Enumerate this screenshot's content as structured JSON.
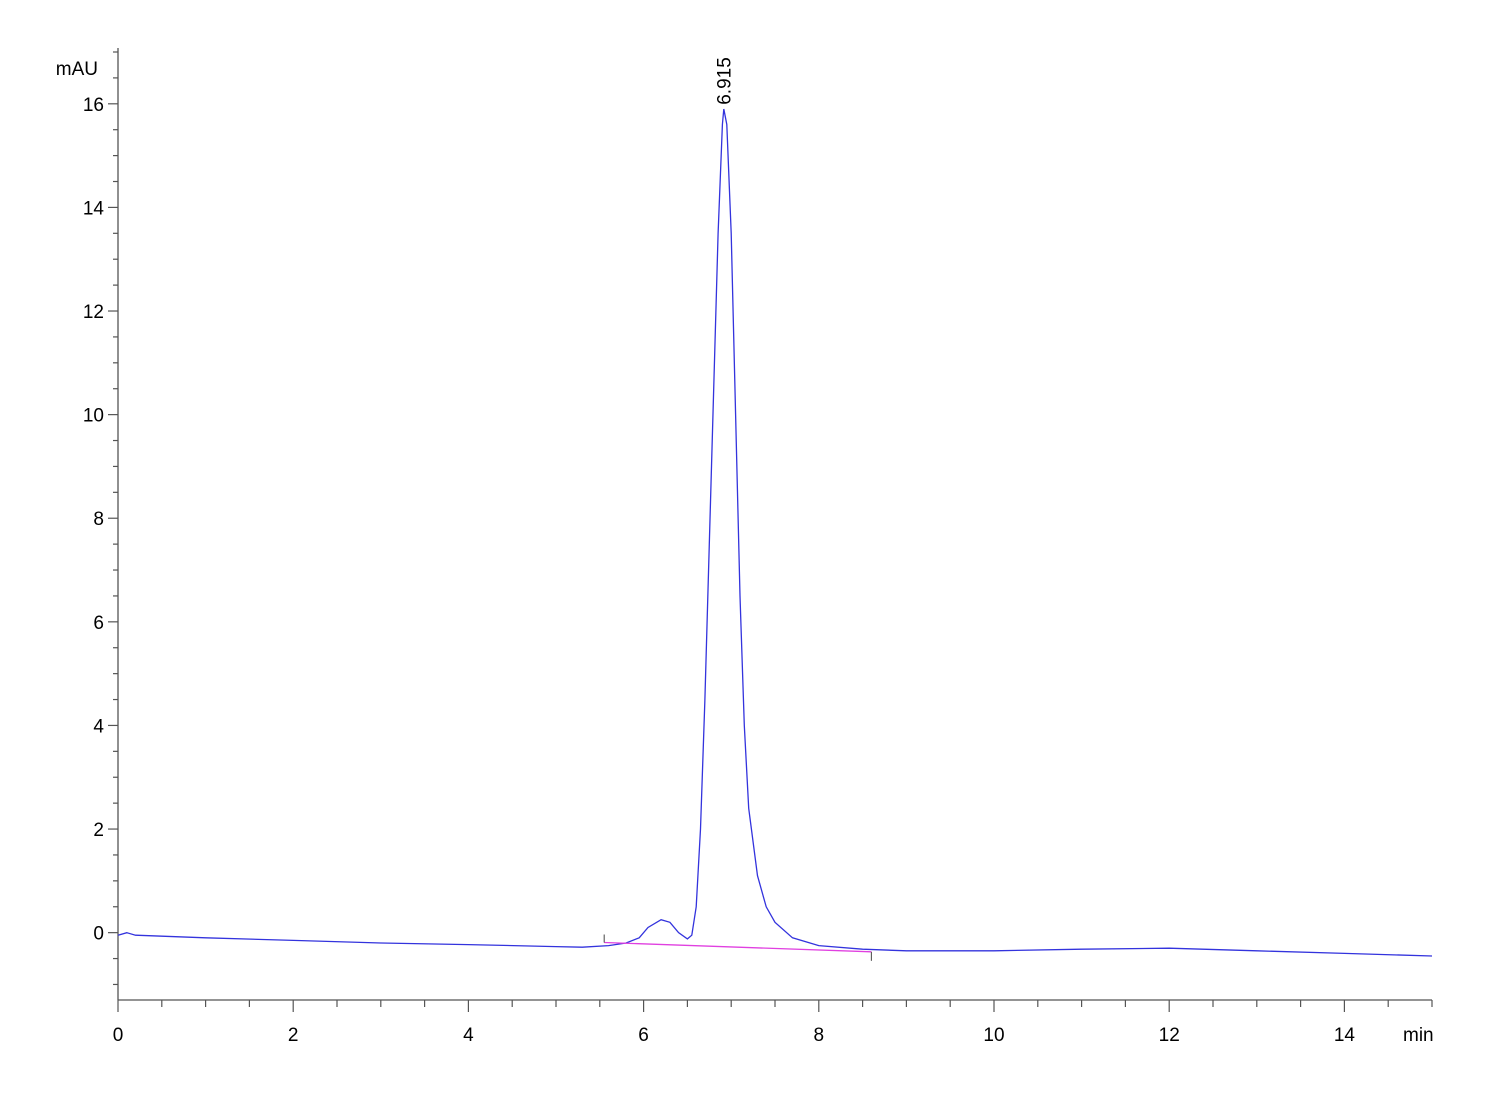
{
  "chart_data": {
    "type": "line",
    "title": "",
    "xlabel": "min",
    "ylabel": "mAU",
    "xlim": [
      0,
      15
    ],
    "ylim": [
      -1.3,
      17
    ],
    "x_ticks": [
      0,
      2,
      4,
      6,
      8,
      10,
      12,
      14
    ],
    "x_minor_step": 0.5,
    "y_ticks": [
      0,
      2,
      4,
      6,
      8,
      10,
      12,
      14,
      16
    ],
    "y_minor_step": 0.5,
    "grid": false,
    "colors": {
      "trace": "#3333dd",
      "baseline": "#e040e0",
      "axis": "#555555"
    },
    "series": [
      {
        "points": [
          [
            0,
            -0.05
          ],
          [
            0.1,
            0.0
          ],
          [
            0.2,
            -0.05
          ],
          [
            1,
            -0.1
          ],
          [
            2,
            -0.15
          ],
          [
            3,
            -0.2
          ],
          [
            4,
            -0.23
          ],
          [
            5,
            -0.27
          ],
          [
            5.3,
            -0.28
          ],
          [
            5.6,
            -0.25
          ],
          [
            5.8,
            -0.2
          ],
          [
            5.95,
            -0.1
          ],
          [
            6.05,
            0.1
          ],
          [
            6.2,
            0.25
          ],
          [
            6.3,
            0.2
          ],
          [
            6.4,
            0.0
          ],
          [
            6.5,
            -0.12
          ],
          [
            6.55,
            -0.05
          ],
          [
            6.6,
            0.5
          ],
          [
            6.65,
            2
          ],
          [
            6.7,
            4.5
          ],
          [
            6.75,
            7.5
          ],
          [
            6.8,
            10.5
          ],
          [
            6.85,
            13.5
          ],
          [
            6.9,
            15.6
          ],
          [
            6.915,
            15.9
          ],
          [
            6.95,
            15.6
          ],
          [
            7.0,
            13.5
          ],
          [
            7.05,
            10
          ],
          [
            7.1,
            6.5
          ],
          [
            7.15,
            4
          ],
          [
            7.2,
            2.4
          ],
          [
            7.3,
            1.1
          ],
          [
            7.4,
            0.5
          ],
          [
            7.5,
            0.2
          ],
          [
            7.7,
            -0.1
          ],
          [
            8,
            -0.25
          ],
          [
            8.5,
            -0.32
          ],
          [
            9,
            -0.35
          ],
          [
            10,
            -0.35
          ],
          [
            11,
            -0.32
          ],
          [
            12,
            -0.3
          ],
          [
            13,
            -0.35
          ],
          [
            14,
            -0.4
          ],
          [
            15,
            -0.45
          ]
        ]
      }
    ],
    "integration_baseline": [
      [
        5.55,
        -0.19
      ],
      [
        8.6,
        -0.37
      ]
    ],
    "peak_labels": [
      {
        "x": 6.915,
        "y": 15.9,
        "text": "6.915"
      }
    ]
  }
}
